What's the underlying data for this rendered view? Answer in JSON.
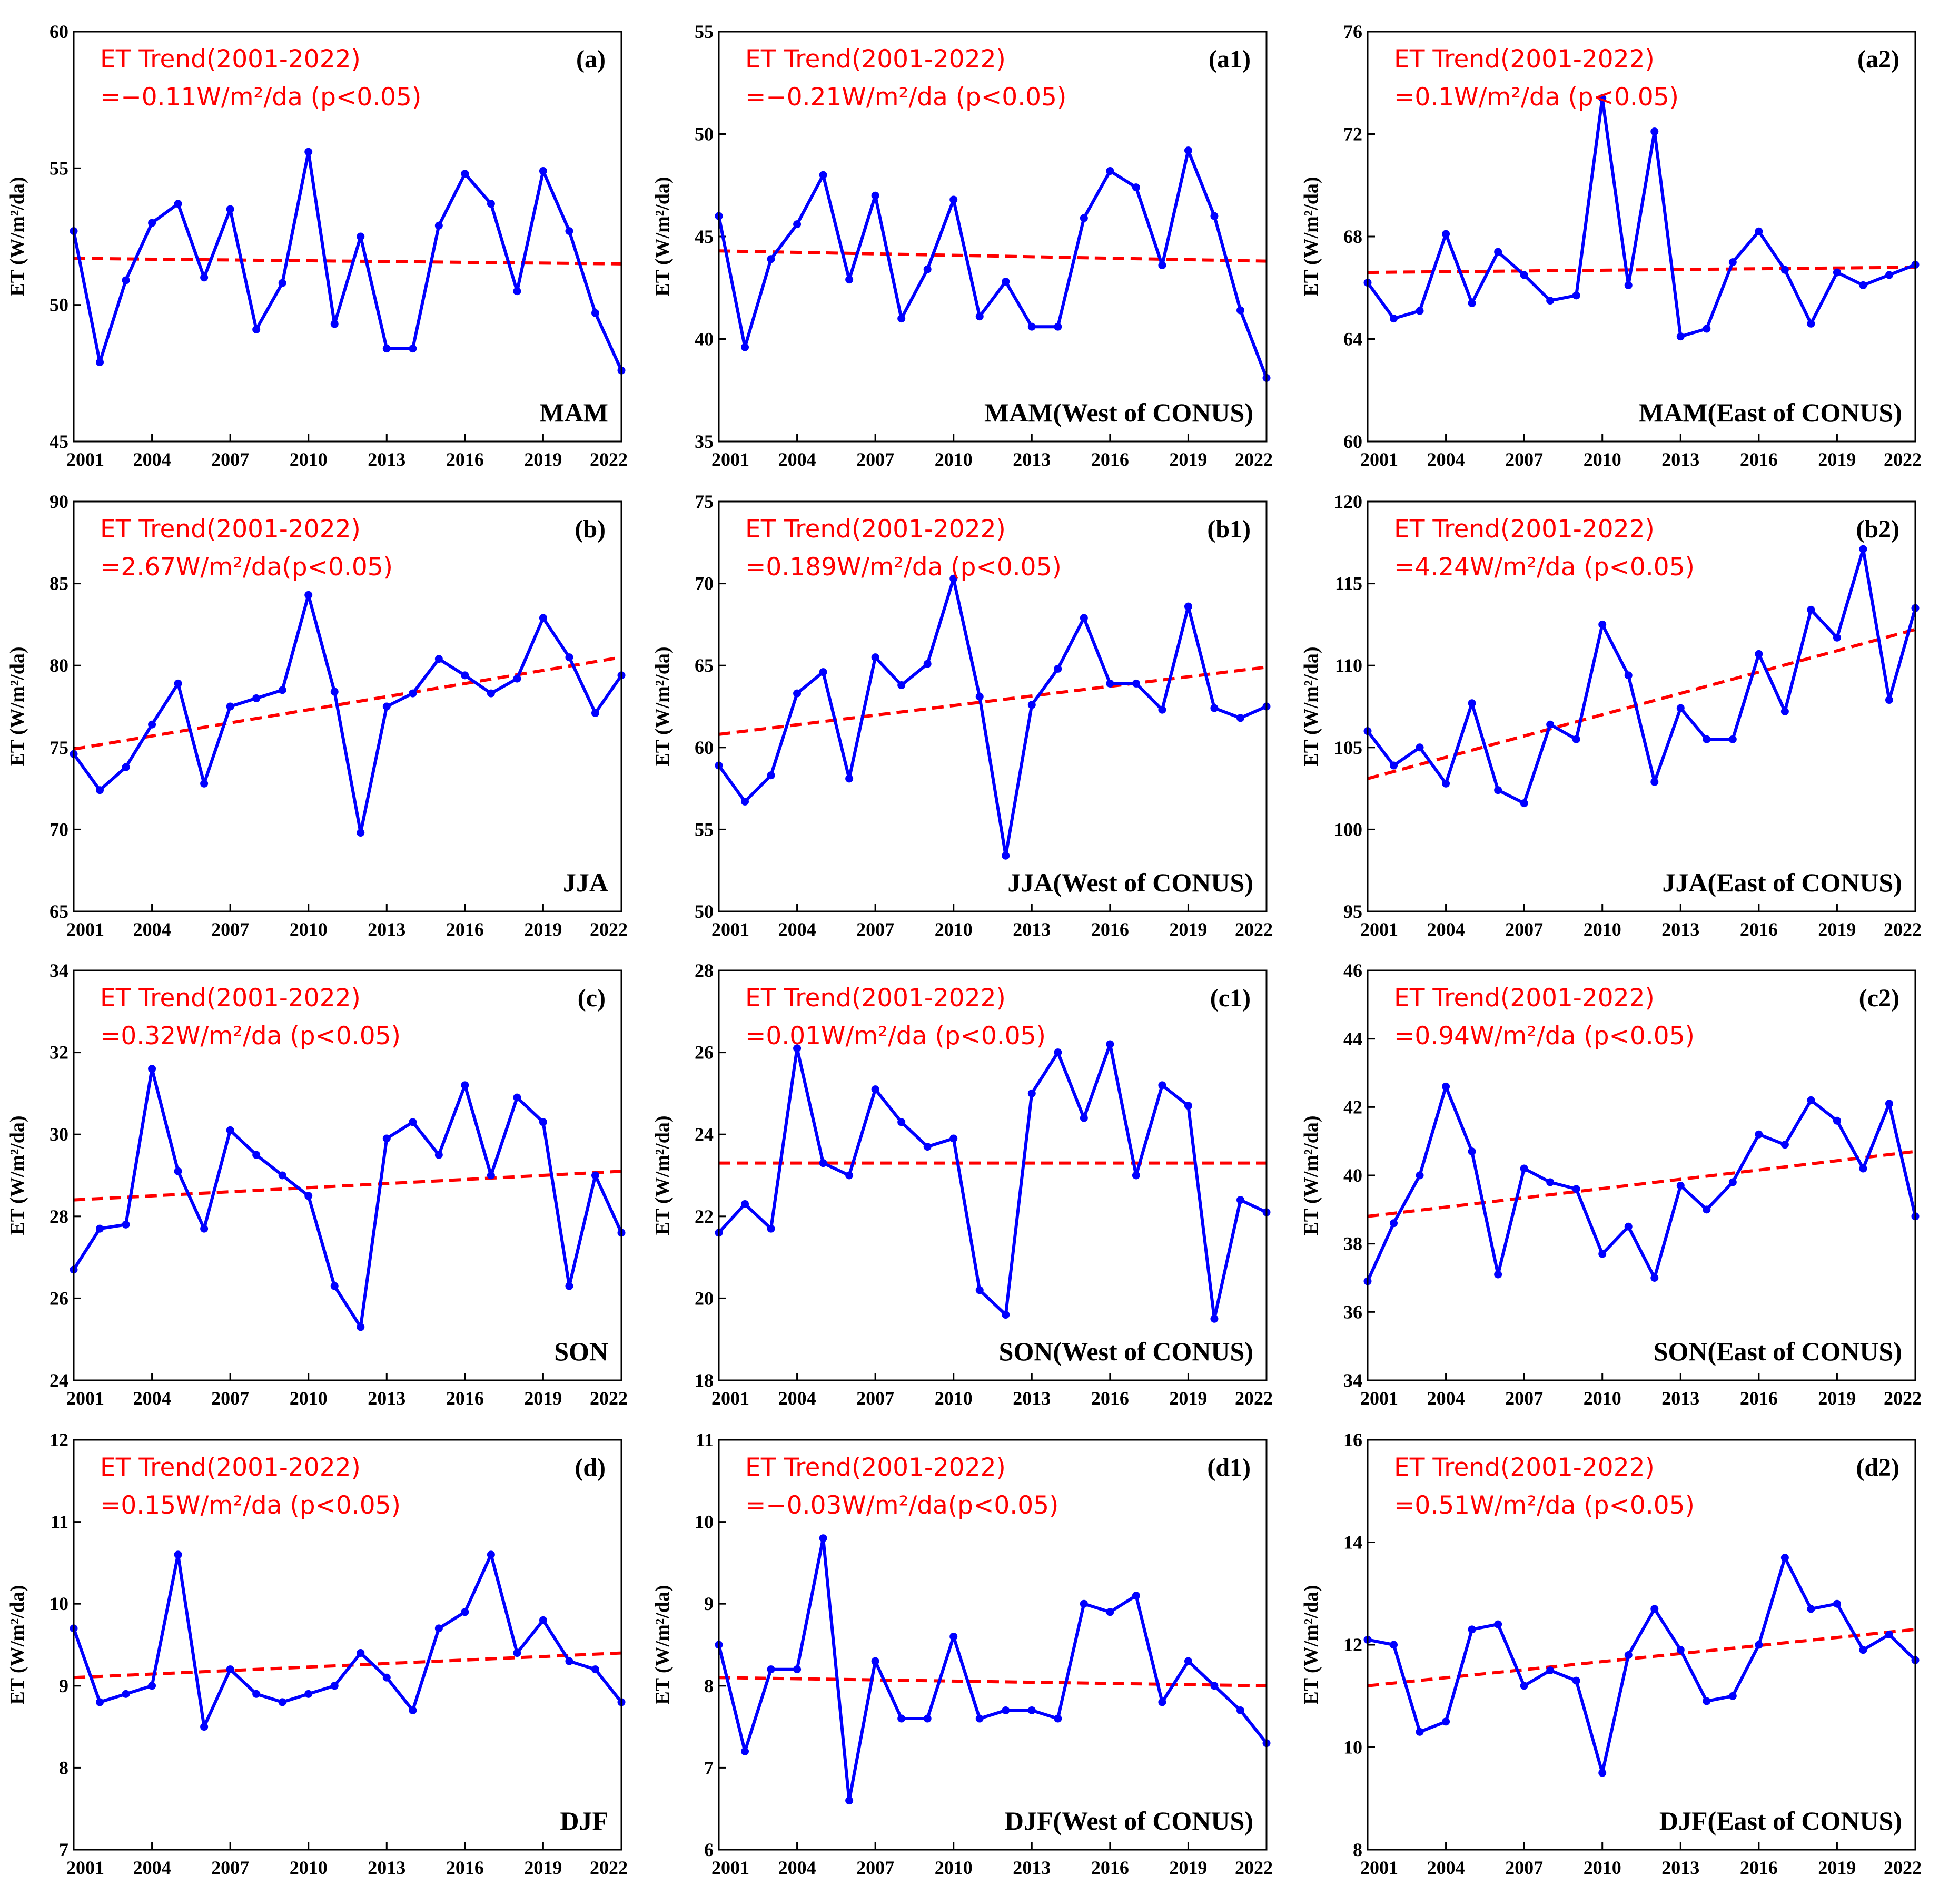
{
  "figure": {
    "trend_title": "ET Trend(2001-2022)",
    "ylabel": "ET (W/m²/da)",
    "xlabel": "",
    "x_ticks": [
      "2001",
      "2004",
      "2007",
      "2010",
      "2013",
      "2016",
      "2019",
      "2022"
    ],
    "colors": {
      "series": "#0000ff",
      "trend": "#ff0000",
      "text_trend": "#ff0000"
    }
  },
  "chart_data": [
    {
      "id": "a",
      "type": "line",
      "label": "(a)",
      "season": "MAM",
      "trend_text": "=−0.11W/m²/da (p<0.05)",
      "ylim": [
        45,
        60
      ],
      "yticks": [
        45,
        50,
        55,
        60
      ],
      "x": [
        2001,
        2002,
        2003,
        2004,
        2005,
        2006,
        2007,
        2008,
        2009,
        2010,
        2011,
        2012,
        2013,
        2014,
        2015,
        2016,
        2017,
        2018,
        2019,
        2020,
        2021,
        2022
      ],
      "values": [
        52.7,
        47.9,
        50.9,
        53.0,
        53.7,
        51.0,
        53.5,
        49.1,
        50.8,
        55.6,
        49.3,
        52.5,
        48.4,
        48.4,
        52.9,
        54.8,
        53.7,
        50.5,
        54.9,
        52.7,
        49.7,
        47.6
      ],
      "trend_line": [
        51.7,
        51.5
      ]
    },
    {
      "id": "a1",
      "type": "line",
      "label": "(a1)",
      "season": "MAM(West of CONUS)",
      "trend_text": "=−0.21W/m²/da (p<0.05)",
      "ylim": [
        35,
        55
      ],
      "yticks": [
        35,
        40,
        45,
        50,
        55
      ],
      "x": [
        2001,
        2002,
        2003,
        2004,
        2005,
        2006,
        2007,
        2008,
        2009,
        2010,
        2011,
        2012,
        2013,
        2014,
        2015,
        2016,
        2017,
        2018,
        2019,
        2020,
        2021,
        2022
      ],
      "values": [
        46.0,
        39.6,
        43.9,
        45.6,
        48.0,
        42.9,
        47.0,
        41.0,
        43.4,
        46.8,
        41.1,
        42.8,
        40.6,
        40.6,
        45.9,
        48.2,
        47.4,
        43.6,
        49.2,
        46.0,
        41.4,
        38.1
      ],
      "trend_line": [
        44.3,
        43.8
      ]
    },
    {
      "id": "a2",
      "type": "line",
      "label": "(a2)",
      "season": "MAM(East of CONUS)",
      "trend_text": "=0.1W/m²/da (p<0.05)",
      "ylim": [
        60,
        76
      ],
      "yticks": [
        60,
        64,
        68,
        72,
        76
      ],
      "x": [
        2001,
        2002,
        2003,
        2004,
        2005,
        2006,
        2007,
        2008,
        2009,
        2010,
        2011,
        2012,
        2013,
        2014,
        2015,
        2016,
        2017,
        2018,
        2019,
        2020,
        2021,
        2022
      ],
      "values": [
        66.2,
        64.8,
        65.1,
        68.1,
        65.4,
        67.4,
        66.5,
        65.5,
        65.7,
        73.4,
        66.1,
        72.1,
        64.1,
        64.4,
        67.0,
        68.2,
        66.7,
        64.6,
        66.6,
        66.1,
        66.5,
        66.9
      ],
      "trend_line": [
        66.6,
        66.8
      ]
    },
    {
      "id": "b",
      "type": "line",
      "label": "(b)",
      "season": "JJA",
      "trend_text": "=2.67W/m²/da(p<0.05)",
      "ylim": [
        65,
        90
      ],
      "yticks": [
        65,
        70,
        75,
        80,
        85,
        90
      ],
      "x": [
        2001,
        2002,
        2003,
        2004,
        2005,
        2006,
        2007,
        2008,
        2009,
        2010,
        2011,
        2012,
        2013,
        2014,
        2015,
        2016,
        2017,
        2018,
        2019,
        2020,
        2021,
        2022
      ],
      "values": [
        74.6,
        72.4,
        73.8,
        76.4,
        78.9,
        72.8,
        77.5,
        78.0,
        78.5,
        84.3,
        78.4,
        69.8,
        77.5,
        78.3,
        80.4,
        79.4,
        78.3,
        79.2,
        82.9,
        80.5,
        77.1,
        79.4
      ],
      "trend_line": [
        74.9,
        80.5
      ]
    },
    {
      "id": "b1",
      "type": "line",
      "label": "(b1)",
      "season": "JJA(West of CONUS)",
      "trend_text": "=0.189W/m²/da (p<0.05)",
      "ylim": [
        50,
        75
      ],
      "yticks": [
        50,
        55,
        60,
        65,
        70,
        75
      ],
      "x": [
        2001,
        2002,
        2003,
        2004,
        2005,
        2006,
        2007,
        2008,
        2009,
        2010,
        2011,
        2012,
        2013,
        2014,
        2015,
        2016,
        2017,
        2018,
        2019,
        2020,
        2021,
        2022
      ],
      "values": [
        58.9,
        56.7,
        58.3,
        63.3,
        64.6,
        58.1,
        65.5,
        63.8,
        65.1,
        70.3,
        63.1,
        53.4,
        62.6,
        64.8,
        67.9,
        63.9,
        63.9,
        62.3,
        68.6,
        62.4,
        61.8,
        62.5
      ],
      "trend_line": [
        60.8,
        64.9
      ]
    },
    {
      "id": "b2",
      "type": "line",
      "label": "(b2)",
      "season": "JJA(East of CONUS)",
      "trend_text": "=4.24W/m²/da (p<0.05)",
      "ylim": [
        95,
        120
      ],
      "yticks": [
        95,
        100,
        105,
        110,
        115,
        120
      ],
      "x": [
        2001,
        2002,
        2003,
        2004,
        2005,
        2006,
        2007,
        2008,
        2009,
        2010,
        2011,
        2012,
        2013,
        2014,
        2015,
        2016,
        2017,
        2018,
        2019,
        2020,
        2021,
        2022
      ],
      "values": [
        106.0,
        103.9,
        105.0,
        102.8,
        107.7,
        102.4,
        101.6,
        106.4,
        105.5,
        112.5,
        109.4,
        102.9,
        107.4,
        105.5,
        105.5,
        110.7,
        107.2,
        113.4,
        111.7,
        117.1,
        107.9,
        113.5
      ],
      "trend_line": [
        103.1,
        112.2
      ]
    },
    {
      "id": "c",
      "type": "line",
      "label": "(c)",
      "season": "SON",
      "trend_text": "=0.32W/m²/da (p<0.05)",
      "ylim": [
        24,
        34
      ],
      "yticks": [
        24,
        26,
        28,
        30,
        32,
        34
      ],
      "x": [
        2001,
        2002,
        2003,
        2004,
        2005,
        2006,
        2007,
        2008,
        2009,
        2010,
        2011,
        2012,
        2013,
        2014,
        2015,
        2016,
        2017,
        2018,
        2019,
        2020,
        2021,
        2022
      ],
      "values": [
        26.7,
        27.7,
        27.8,
        31.6,
        29.1,
        27.7,
        30.1,
        29.5,
        29.0,
        28.5,
        26.3,
        25.3,
        29.9,
        30.3,
        29.5,
        31.2,
        29.0,
        30.9,
        30.3,
        26.3,
        29.0,
        27.6
      ],
      "trend_line": [
        28.4,
        29.1
      ]
    },
    {
      "id": "c1",
      "type": "line",
      "label": "(c1)",
      "season": "SON(West of CONUS)",
      "trend_text": "=0.01W/m²/da (p<0.05)",
      "ylim": [
        18,
        28
      ],
      "yticks": [
        18,
        20,
        22,
        24,
        26,
        28
      ],
      "x": [
        2001,
        2002,
        2003,
        2004,
        2005,
        2006,
        2007,
        2008,
        2009,
        2010,
        2011,
        2012,
        2013,
        2014,
        2015,
        2016,
        2017,
        2018,
        2019,
        2020,
        2021,
        2022
      ],
      "values": [
        21.6,
        22.3,
        21.7,
        26.1,
        23.3,
        23.0,
        25.1,
        24.3,
        23.7,
        23.9,
        20.2,
        19.6,
        25.0,
        26.0,
        24.4,
        26.2,
        23.0,
        25.2,
        24.7,
        19.5,
        22.4,
        22.1
      ],
      "trend_line": [
        23.3,
        23.3
      ]
    },
    {
      "id": "c2",
      "type": "line",
      "label": "(c2)",
      "season": "SON(East of CONUS)",
      "trend_text": "=0.94W/m²/da (p<0.05)",
      "ylim": [
        34,
        46
      ],
      "yticks": [
        34,
        36,
        38,
        40,
        42,
        44,
        46
      ],
      "x": [
        2001,
        2002,
        2003,
        2004,
        2005,
        2006,
        2007,
        2008,
        2009,
        2010,
        2011,
        2012,
        2013,
        2014,
        2015,
        2016,
        2017,
        2018,
        2019,
        2020,
        2021,
        2022
      ],
      "values": [
        36.9,
        38.6,
        40.0,
        42.6,
        40.7,
        37.1,
        40.2,
        39.8,
        39.6,
        37.7,
        38.5,
        37.0,
        39.7,
        39.0,
        39.8,
        41.2,
        40.9,
        42.2,
        41.6,
        40.2,
        42.1,
        38.8
      ],
      "trend_line": [
        38.8,
        40.7
      ]
    },
    {
      "id": "d",
      "type": "line",
      "label": "(d)",
      "season": "DJF",
      "trend_text": "=0.15W/m²/da (p<0.05)",
      "ylim": [
        7,
        12
      ],
      "yticks": [
        7,
        8,
        9,
        10,
        11,
        12
      ],
      "x": [
        2001,
        2002,
        2003,
        2004,
        2005,
        2006,
        2007,
        2008,
        2009,
        2010,
        2011,
        2012,
        2013,
        2014,
        2015,
        2016,
        2017,
        2018,
        2019,
        2020,
        2021,
        2022
      ],
      "values": [
        9.7,
        8.8,
        8.9,
        9.0,
        10.6,
        8.5,
        9.2,
        8.9,
        8.8,
        8.9,
        9.0,
        9.4,
        9.1,
        8.7,
        9.7,
        9.9,
        10.6,
        9.4,
        9.8,
        9.3,
        9.2,
        8.8
      ],
      "trend_line": [
        9.1,
        9.4
      ]
    },
    {
      "id": "d1",
      "type": "line",
      "label": "(d1)",
      "season": "DJF(West of CONUS)",
      "trend_text": "=−0.03W/m²/da(p<0.05)",
      "ylim": [
        6,
        11
      ],
      "yticks": [
        6,
        7,
        8,
        9,
        10,
        11
      ],
      "x": [
        2001,
        2002,
        2003,
        2004,
        2005,
        2006,
        2007,
        2008,
        2009,
        2010,
        2011,
        2012,
        2013,
        2014,
        2015,
        2016,
        2017,
        2018,
        2019,
        2020,
        2021,
        2022
      ],
      "values": [
        8.5,
        7.2,
        8.2,
        8.2,
        9.8,
        6.6,
        8.3,
        7.6,
        7.6,
        8.6,
        7.6,
        7.7,
        7.7,
        7.6,
        9.0,
        8.9,
        9.1,
        7.8,
        8.3,
        8.0,
        7.7,
        7.3
      ],
      "trend_line": [
        8.1,
        8.0
      ]
    },
    {
      "id": "d2",
      "type": "line",
      "label": "(d2)",
      "season": "DJF(East of CONUS)",
      "trend_text": "=0.51W/m²/da (p<0.05)",
      "ylim": [
        8,
        16
      ],
      "yticks": [
        8,
        10,
        12,
        14,
        16
      ],
      "x": [
        2001,
        2002,
        2003,
        2004,
        2005,
        2006,
        2007,
        2008,
        2009,
        2010,
        2011,
        2012,
        2013,
        2014,
        2015,
        2016,
        2017,
        2018,
        2019,
        2020,
        2021,
        2022
      ],
      "values": [
        12.1,
        12.0,
        10.3,
        10.5,
        12.3,
        12.4,
        11.2,
        11.5,
        11.3,
        9.5,
        11.8,
        12.7,
        11.9,
        10.9,
        11.0,
        12.0,
        13.7,
        12.7,
        12.8,
        11.9,
        12.2,
        11.7
      ],
      "trend_line": [
        11.2,
        12.3
      ]
    }
  ]
}
